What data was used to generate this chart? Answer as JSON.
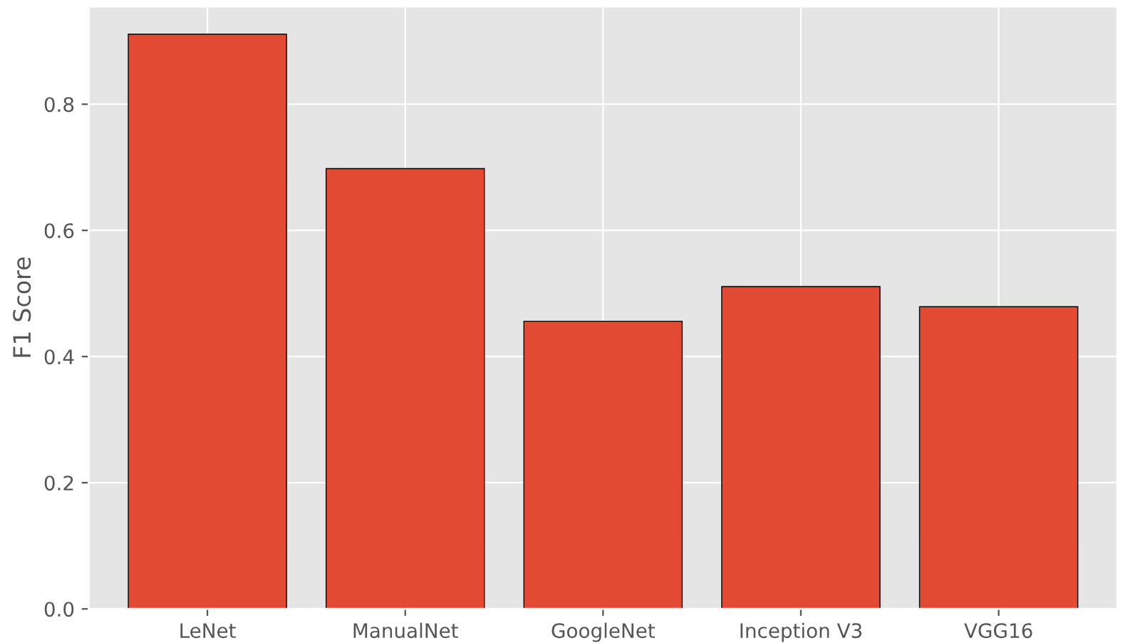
{
  "chart_data": {
    "type": "bar",
    "ylabel": "F1 Score",
    "categories": [
      "LeNet",
      "ManualNet",
      "GoogleNet",
      "Inception V3",
      "VGG16"
    ],
    "values": [
      0.911,
      0.698,
      0.456,
      0.511,
      0.479
    ],
    "color": "#e24a33",
    "ylim": [
      0,
      0.955
    ],
    "yticks": [
      {
        "value": 0,
        "label": "0.0"
      },
      {
        "value": 0.2,
        "label": "0.2"
      },
      {
        "value": 0.4,
        "label": "0.4"
      },
      {
        "value": 0.6,
        "label": "0.6"
      },
      {
        "value": 0.8,
        "label": "0.8"
      }
    ],
    "grid": true,
    "legend": false
  }
}
